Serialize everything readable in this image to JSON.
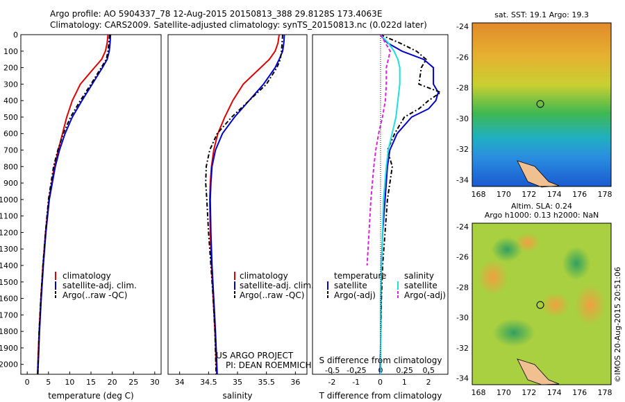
{
  "header": {
    "line1": "Argo profile: AO 5904337_78 12-Aug-2015 20150813_388 29.8128S 173.4063E",
    "line2": "Climatology: CARS2009. Satellite-adjusted climatology: synTS_20150813.nc (0.022d later)"
  },
  "map_sst": {
    "title": "sat. SST: 19.1  Argo: 19.3",
    "ytick_labels": [
      "-24",
      "-26",
      "-28",
      "-30",
      "-32",
      "-34"
    ],
    "xtick_labels": [
      "168",
      "170",
      "172",
      "174",
      "176",
      "178"
    ]
  },
  "map_sla": {
    "title_line1": "Altim. SLA: 0.24",
    "title_line2": "Argo h1000: 0.13 h2000: NaN",
    "ytick_labels": [
      "-24",
      "-26",
      "-28",
      "-30",
      "-32",
      "-34"
    ],
    "xtick_labels": [
      "168",
      "170",
      "172",
      "174",
      "176",
      "178"
    ]
  },
  "credit": "©IMOS 20-Aug-2015 20:51:06",
  "annotations": {
    "project": "US ARGO PROJECT",
    "pi": "PI: DEAN ROEMMICH"
  },
  "legend_profile": [
    "climatology",
    "satellite-adj. clim.",
    "Argo(..raw -QC)"
  ],
  "legend_diff": {
    "temp_header": "temperature",
    "sal_header": "salinity",
    "temp_items": [
      "satellite",
      "Argo(-adj)"
    ],
    "sal_items": [
      "satellite",
      "Argo(-adj)"
    ]
  },
  "colors": {
    "climatology": "#dd0000",
    "satellite": "#0000cc",
    "argo": "#000000",
    "sal_satellite": "#22dddd",
    "sal_argo": "#dd22dd"
  },
  "chart_data": [
    {
      "type": "line",
      "xlabel": "temperature (deg C)",
      "ylabel": "",
      "xlim": [
        -1.5,
        31.5
      ],
      "ylim": [
        2060,
        0
      ],
      "xticks": [
        0,
        5,
        10,
        15,
        20,
        25,
        30
      ],
      "yticks": [
        0,
        100,
        200,
        300,
        400,
        500,
        600,
        700,
        800,
        900,
        1000,
        1100,
        1200,
        1300,
        1400,
        1500,
        1600,
        1700,
        1800,
        1900,
        2000
      ],
      "series": [
        {
          "name": "climatology",
          "depth": [
            0,
            50,
            100,
            150,
            200,
            300,
            400,
            500,
            600,
            700,
            800,
            1000,
            1200,
            1400,
            1600,
            1800,
            2060
          ],
          "values": [
            19.0,
            18.8,
            18.4,
            17.5,
            15.8,
            12.5,
            10.6,
            9.3,
            8.3,
            7.3,
            6.4,
            5.1,
            4.3,
            3.7,
            3.2,
            2.8,
            2.4
          ]
        },
        {
          "name": "satellite-adj. clim.",
          "depth": [
            0,
            50,
            100,
            150,
            200,
            300,
            400,
            500,
            600,
            700,
            800,
            1000,
            1200,
            1400,
            1600,
            1800,
            2060
          ],
          "values": [
            19.6,
            19.5,
            19.3,
            18.8,
            17.7,
            15.3,
            12.9,
            10.6,
            8.9,
            7.6,
            6.6,
            5.2,
            4.4,
            3.8,
            3.3,
            2.9,
            2.5
          ]
        },
        {
          "name": "Argo(..raw -QC)",
          "depth": [
            0,
            50,
            100,
            150,
            200,
            300,
            400,
            500,
            600,
            700,
            800,
            1000,
            1200,
            1400,
            1600,
            1800,
            2060
          ],
          "values": [
            19.4,
            19.2,
            19.0,
            18.6,
            17.4,
            15.0,
            12.5,
            10.2,
            8.5,
            7.2,
            6.2,
            5.0,
            4.3,
            3.7,
            3.2,
            2.8,
            2.5
          ]
        }
      ]
    },
    {
      "type": "line",
      "xlabel": "salinity",
      "ylabel": "",
      "xlim": [
        33.8,
        36.2
      ],
      "ylim": [
        2060,
        0
      ],
      "xticks": [
        34,
        34.5,
        35,
        35.5,
        36
      ],
      "series": [
        {
          "name": "climatology",
          "depth": [
            0,
            50,
            100,
            150,
            200,
            300,
            400,
            500,
            600,
            700,
            800,
            900,
            1000,
            1200,
            1400,
            1600,
            1800,
            2060
          ],
          "values": [
            35.72,
            35.7,
            35.65,
            35.55,
            35.4,
            35.1,
            34.92,
            34.78,
            34.66,
            34.59,
            34.55,
            34.53,
            34.52,
            34.53,
            34.55,
            34.58,
            34.61,
            34.64
          ]
        },
        {
          "name": "satellite-adj. clim.",
          "depth": [
            0,
            50,
            100,
            150,
            200,
            300,
            400,
            500,
            600,
            700,
            800,
            900,
            1000,
            1200,
            1400,
            1600,
            1800,
            2060
          ],
          "values": [
            35.81,
            35.8,
            35.78,
            35.72,
            35.65,
            35.45,
            35.2,
            34.95,
            34.74,
            34.62,
            34.56,
            34.54,
            34.53,
            34.54,
            34.56,
            34.59,
            34.62,
            34.65
          ]
        },
        {
          "name": "Argo(..raw -QC)",
          "depth": [
            0,
            50,
            100,
            150,
            200,
            300,
            400,
            500,
            600,
            700,
            800,
            900,
            1000,
            1200,
            1400,
            1600,
            1800,
            2060
          ],
          "values": [
            35.78,
            35.77,
            35.76,
            35.74,
            35.68,
            35.5,
            35.2,
            34.9,
            34.65,
            34.52,
            34.46,
            34.45,
            34.47,
            34.5,
            34.54,
            34.58,
            34.61,
            34.63
          ]
        }
      ]
    },
    {
      "type": "line",
      "xlabel": "T difference from climatology",
      "ylabel": "",
      "top_label": "S difference from climatology",
      "xlim": [
        -2.8,
        2.8
      ],
      "ylim": [
        2060,
        0
      ],
      "xticks": [
        -2,
        -1,
        0,
        1,
        2
      ],
      "top_ticks": [
        -0.5,
        -0.25,
        0,
        0.25,
        0.5
      ],
      "series": [
        {
          "name": "temperature satellite",
          "depth": [
            0,
            50,
            100,
            150,
            200,
            300,
            350,
            400,
            450,
            500,
            600,
            700,
            800,
            1000,
            1200,
            1400,
            1600,
            1800,
            2060
          ],
          "values": [
            0.0,
            0.3,
            0.9,
            1.8,
            2.2,
            2.2,
            2.4,
            2.3,
            2.0,
            1.3,
            0.7,
            0.4,
            0.3,
            0.2,
            0.1,
            0.05,
            0.03,
            0.02,
            0.0
          ]
        },
        {
          "name": "temperature Argo(-adj)",
          "depth": [
            0,
            50,
            100,
            150,
            200,
            300,
            350,
            400,
            450,
            500,
            600,
            700,
            800,
            1000,
            1200,
            1400,
            1600,
            1800,
            2060
          ],
          "values": [
            0.0,
            0.8,
            1.5,
            1.9,
            1.7,
            1.6,
            2.5,
            2.0,
            1.6,
            1.0,
            0.6,
            0.3,
            0.5,
            0.3,
            0.2,
            0.1,
            0.05,
            0.02,
            0.0
          ]
        },
        {
          "name": "salinity satellite",
          "depth": [
            0,
            50,
            100,
            150,
            200,
            300,
            400,
            500,
            600,
            700,
            800,
            1000,
            1200,
            1400,
            1600,
            1800,
            2060
          ],
          "values": [
            0.0,
            0.08,
            0.14,
            0.18,
            0.2,
            0.2,
            0.18,
            0.16,
            0.12,
            0.08,
            0.06,
            0.03,
            0.02,
            0.01,
            0.0,
            0.0,
            0.0
          ]
        },
        {
          "name": "salinity Argo(-adj)",
          "depth": [
            0,
            50,
            100,
            150,
            200,
            300,
            400,
            500,
            600,
            700,
            800,
            1000,
            1200,
            1400
          ],
          "values": [
            0.0,
            0.05,
            0.1,
            0.08,
            0.06,
            0.06,
            0.05,
            0.02,
            -0.02,
            -0.05,
            -0.07,
            -0.1,
            -0.12,
            -0.14
          ]
        }
      ]
    }
  ]
}
